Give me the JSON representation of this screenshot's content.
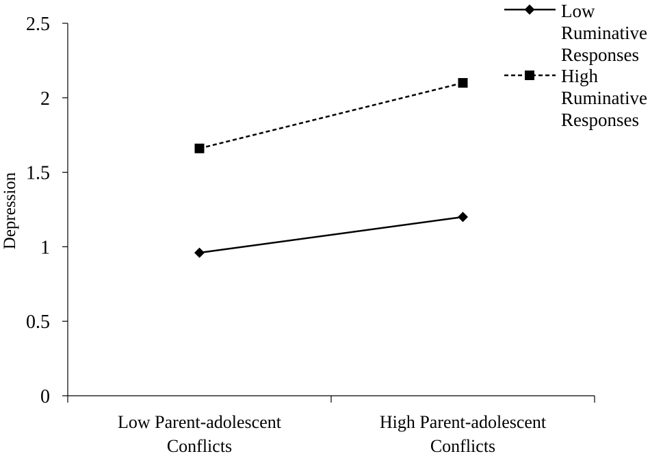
{
  "chart_data": {
    "type": "line",
    "title": "",
    "xlabel": "",
    "ylabel": "Depression",
    "categories": [
      "Low Parent-adolescent Conflicts",
      "High Parent-adolescent Conflicts"
    ],
    "ylim": [
      0,
      2.5
    ],
    "yticks": [
      "0",
      "0.5",
      "1",
      "1.5",
      "2",
      "2.5"
    ],
    "grid": false,
    "legend_position": "top-right",
    "series": [
      {
        "name": "Low Ruminative Responses",
        "values": [
          0.96,
          1.2
        ],
        "marker": "diamond",
        "line_style": "solid",
        "color": "#000000"
      },
      {
        "name": "High Ruminative Responses",
        "values": [
          1.66,
          2.1
        ],
        "marker": "square",
        "line_style": "dashed",
        "color": "#000000"
      }
    ]
  }
}
